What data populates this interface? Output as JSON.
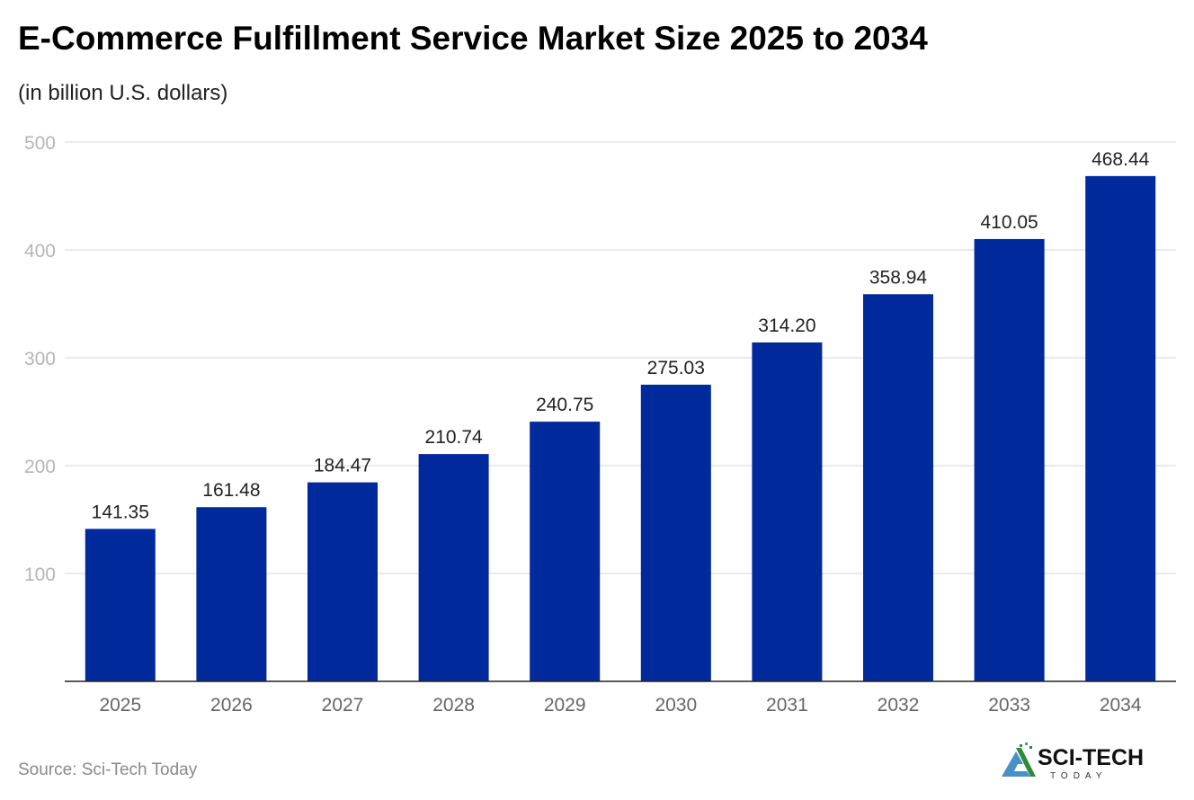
{
  "chart_data": {
    "type": "bar",
    "title": "E-Commerce Fulfillment Service Market Size 2025 to 2034",
    "subtitle": "(in billion U.S. dollars)",
    "categories": [
      "2025",
      "2026",
      "2027",
      "2028",
      "2029",
      "2030",
      "2031",
      "2032",
      "2033",
      "2034"
    ],
    "values": [
      141.35,
      161.48,
      184.47,
      210.74,
      240.75,
      275.03,
      314.2,
      358.94,
      410.05,
      468.44
    ],
    "value_labels": [
      "141.35",
      "161.48",
      "184.47",
      "210.74",
      "240.75",
      "275.03",
      "314.20",
      "358.94",
      "410.05",
      "468.44"
    ],
    "xlabel": "",
    "ylabel": "",
    "ylim": [
      0,
      500
    ],
    "yticks": [
      "100",
      "200",
      "300",
      "400",
      "500"
    ],
    "grid": true,
    "bar_color": "#002a9c"
  },
  "source": "Source: Sci-Tech Today",
  "logo": {
    "name": "SCI-TECH",
    "tagline": "TODAY"
  }
}
